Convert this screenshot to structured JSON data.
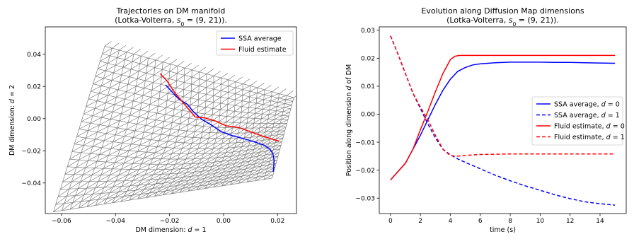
{
  "chart_data": [
    {
      "type": "line",
      "title": [
        "Trajectories on DM manifold",
        "(Lotka-Volterra, ",
        "s",
        "0",
        " = (9, 21))."
      ],
      "xlabel": [
        "DM dimension: ",
        "d",
        " = 1"
      ],
      "ylabel": [
        "DM dimension: ",
        "d",
        " = 2"
      ],
      "xlim": [
        -0.066,
        0.027
      ],
      "ylim": [
        -0.059,
        0.057
      ],
      "xticks": [
        -0.06,
        -0.04,
        -0.02,
        0.0,
        0.02
      ],
      "xtick_labels": [
        "−0.06",
        "−0.04",
        "−0.02",
        "0.00",
        "0.02"
      ],
      "yticks": [
        -0.04,
        -0.02,
        0.0,
        0.02,
        0.04
      ],
      "ytick_labels": [
        "−0.04",
        "−0.02",
        "0.00",
        "0.02",
        "0.04"
      ],
      "legend_position": "top-right",
      "background": "gray wireframe mesh of the diffusion-map manifold",
      "mesh_color": "#7f7f7f",
      "series": [
        {
          "name": "SSA average",
          "color": "#0000ff",
          "style": "solid",
          "x": [
            -0.0215,
            -0.019,
            -0.0165,
            -0.0135,
            -0.011,
            -0.008,
            -0.0045,
            -0.001,
            0.003,
            0.0075,
            0.0115,
            0.015,
            0.0172,
            0.0183,
            0.0187,
            0.0186,
            0.0184
          ],
          "y": [
            0.021,
            0.0165,
            0.012,
            0.009,
            0.004,
            -0.0005,
            -0.004,
            -0.008,
            -0.0105,
            -0.0125,
            -0.0145,
            -0.0165,
            -0.019,
            -0.022,
            -0.026,
            -0.03,
            -0.033
          ]
        },
        {
          "name": "Fluid estimate",
          "color": "#ff0000",
          "style": "solid",
          "x": [
            -0.0235,
            -0.021,
            -0.018,
            -0.0155,
            -0.013,
            -0.0105,
            -0.007,
            -0.003,
            0.001,
            0.0055,
            0.0105,
            0.0155,
            0.0205
          ],
          "y": [
            0.028,
            0.0235,
            0.016,
            0.011,
            0.006,
            0.001,
            0.0005,
            -0.0015,
            -0.0045,
            -0.0055,
            -0.0085,
            -0.0115,
            -0.014
          ]
        }
      ]
    },
    {
      "type": "line",
      "title": [
        "Evolution along Diffusion Map dimensions",
        "(Lotka-Volterra, ",
        "s",
        "0",
        " = (9, 21))."
      ],
      "xlabel": [
        "time (s)"
      ],
      "ylabel": [
        "Position along dimension ",
        "d",
        " of DM"
      ],
      "xlim": [
        -0.75,
        15.75
      ],
      "ylim": [
        -0.0355,
        0.0312
      ],
      "xticks": [
        0,
        2,
        4,
        6,
        8,
        10,
        12,
        14
      ],
      "xtick_labels": [
        "0",
        "2",
        "4",
        "6",
        "8",
        "10",
        "12",
        "14"
      ],
      "yticks": [
        -0.03,
        -0.02,
        -0.01,
        0.0,
        0.01,
        0.02,
        0.03
      ],
      "ytick_labels": [
        "−0.03",
        "−0.02",
        "−0.01",
        "0.00",
        "0.01",
        "0.02",
        "0.03"
      ],
      "legend_position": "center-right",
      "series": [
        {
          "name": [
            "SSA average, ",
            "d",
            " = 0"
          ],
          "color": "#0000ff",
          "style": "solid",
          "x": [
            0,
            0.5,
            1,
            1.5,
            2,
            2.5,
            3,
            3.5,
            4,
            4.5,
            5,
            5.5,
            6,
            7,
            8,
            9,
            10,
            11,
            12,
            13,
            14,
            15
          ],
          "y": [
            -0.0235,
            -0.0205,
            -0.0175,
            -0.0125,
            -0.0075,
            -0.002,
            0.0035,
            0.0085,
            0.0125,
            0.0153,
            0.0167,
            0.0176,
            0.018,
            0.0184,
            0.0186,
            0.0186,
            0.0186,
            0.0185,
            0.0185,
            0.0184,
            0.0183,
            0.0182
          ]
        },
        {
          "name": [
            "SSA average, ",
            "d",
            " = 1"
          ],
          "color": "#0000ff",
          "style": "dashed",
          "x": [
            0,
            0.5,
            1,
            1.5,
            2,
            2.5,
            3,
            3.5,
            4,
            4.5,
            5,
            6,
            7,
            8,
            9,
            10,
            11,
            12,
            13,
            14,
            15
          ],
          "y": [
            0.028,
            0.0215,
            0.0145,
            0.0075,
            0.002,
            -0.0035,
            -0.0085,
            -0.0125,
            -0.0145,
            -0.016,
            -0.0172,
            -0.0195,
            -0.0218,
            -0.0238,
            -0.0256,
            -0.0272,
            -0.0288,
            -0.0302,
            -0.0313,
            -0.032,
            -0.0325
          ]
        },
        {
          "name": [
            "Fluid estimate, ",
            "d",
            " = 0"
          ],
          "color": "#ff0000",
          "style": "solid",
          "x": [
            0,
            0.5,
            1,
            1.5,
            2,
            2.5,
            3,
            3.5,
            4,
            4.3,
            4.6,
            5,
            5.5,
            6,
            8,
            10,
            12,
            14,
            15
          ],
          "y": [
            -0.0235,
            -0.0205,
            -0.0175,
            -0.0125,
            -0.0055,
            0.001,
            0.008,
            0.0145,
            0.0195,
            0.0207,
            0.021,
            0.021,
            0.021,
            0.021,
            0.021,
            0.021,
            0.021,
            0.021,
            0.021
          ]
        },
        {
          "name": [
            "Fluid estimate, ",
            "d",
            " = 1"
          ],
          "color": "#ff0000",
          "style": "dashed",
          "x": [
            0,
            0.5,
            1,
            1.5,
            2,
            2.5,
            3,
            3.5,
            4,
            4.5,
            5,
            6,
            7,
            8,
            10,
            12,
            14,
            15
          ],
          "y": [
            0.028,
            0.0215,
            0.0145,
            0.0075,
            0.0025,
            -0.002,
            -0.0075,
            -0.0125,
            -0.0148,
            -0.015,
            -0.0147,
            -0.0144,
            -0.0143,
            -0.0142,
            -0.0142,
            -0.0142,
            -0.0142,
            -0.0142
          ]
        }
      ]
    }
  ]
}
